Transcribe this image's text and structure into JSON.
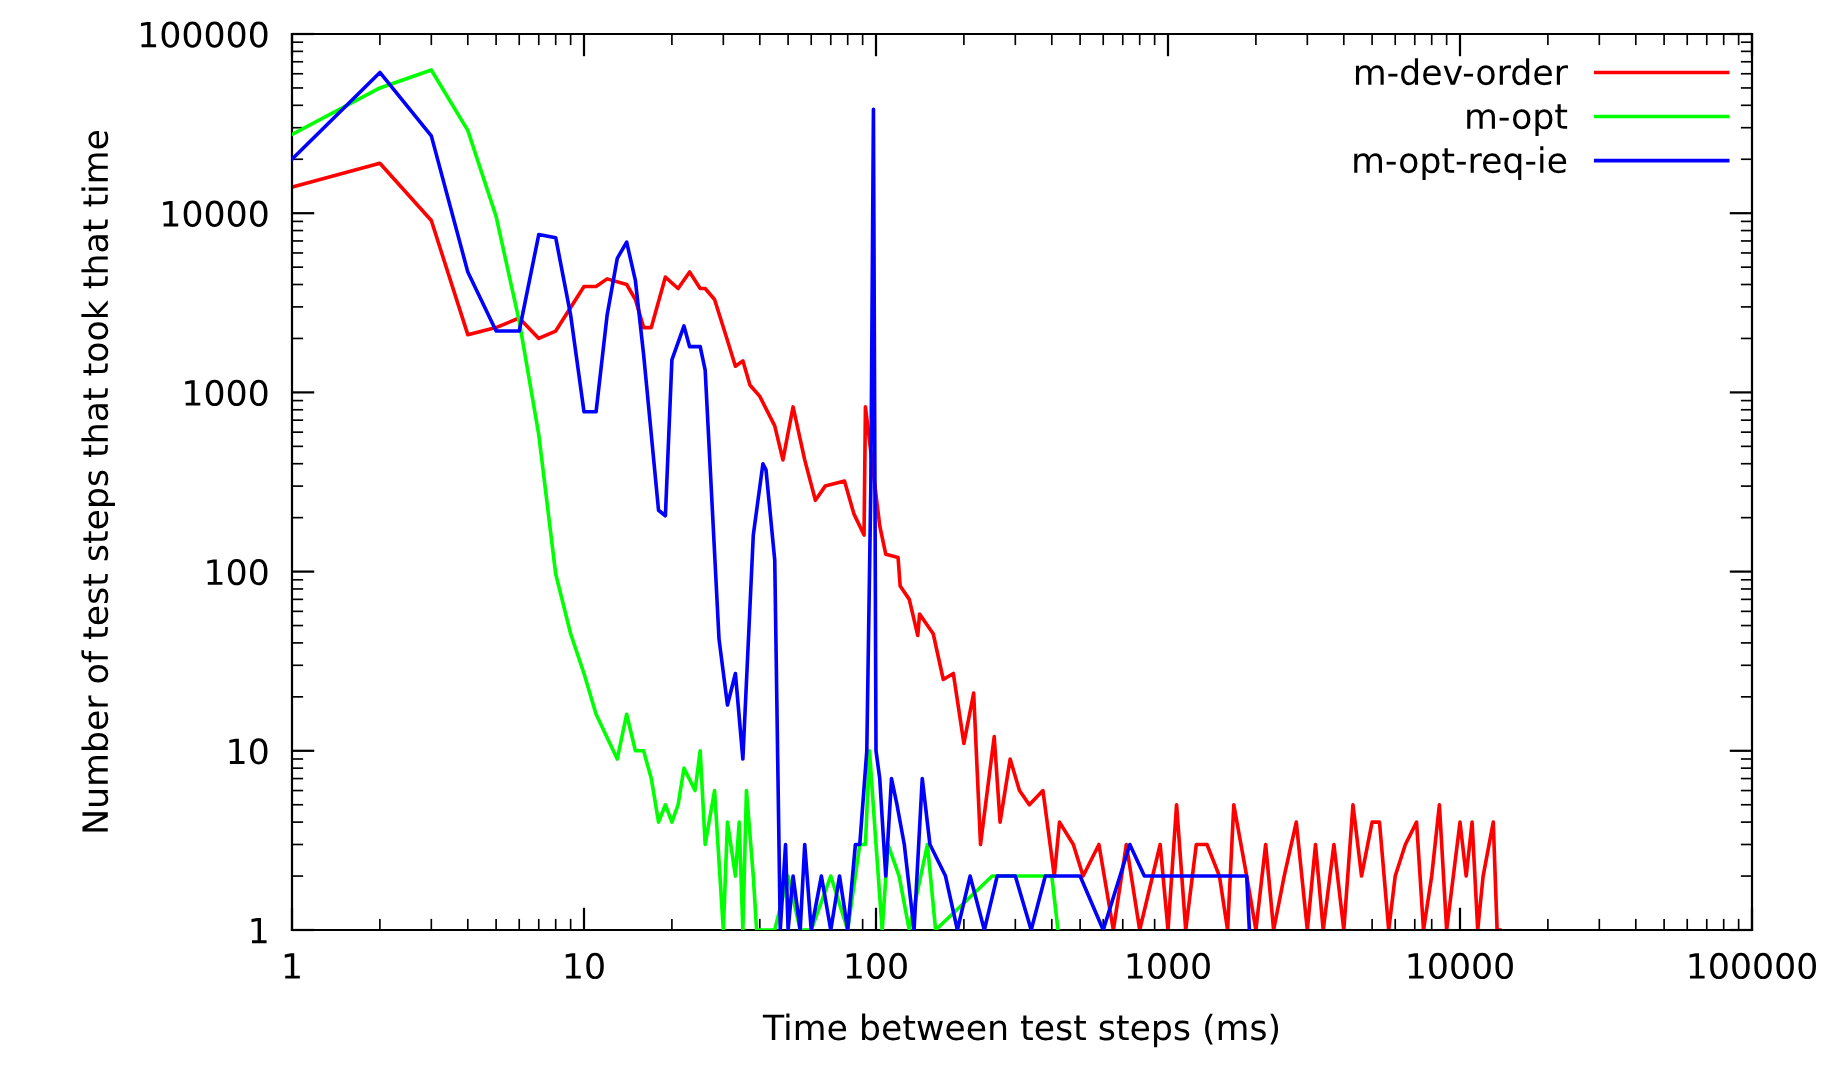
{
  "chart_data": {
    "type": "line",
    "xlabel": "Time between test steps (ms)",
    "ylabel": "Number of test steps that took that time",
    "log": "xy",
    "xlim": [
      1,
      100000
    ],
    "xticks": [
      1,
      10,
      100,
      1000,
      10000,
      100000
    ],
    "ylim": [
      1,
      100000
    ],
    "yticks": [
      1,
      10,
      100,
      1000,
      10000,
      100000
    ],
    "grid": false,
    "legend": "top right",
    "line_style": "solid",
    "series": [
      {
        "name": "m-dev-order",
        "color": "#ff0000",
        "x": [
          1,
          2,
          3,
          4,
          5,
          6,
          7,
          8,
          10,
          11,
          12,
          14,
          15,
          16,
          17,
          19,
          21,
          23,
          25,
          26,
          28,
          31,
          33,
          35,
          37,
          40,
          45,
          48,
          52,
          57,
          62,
          67,
          78,
          84,
          91,
          92,
          103,
          108,
          119,
          121,
          130,
          139,
          141,
          157,
          170,
          184,
          200,
          216,
          228,
          254,
          266,
          288,
          310,
          335,
          373,
          408,
          425,
          474,
          512,
          580,
          650,
          720,
          800,
          940,
          1000,
          1070,
          1150,
          1250,
          1360,
          1500,
          1600,
          1680,
          1860,
          2000,
          2160,
          2300,
          2500,
          2750,
          3000,
          3200,
          3400,
          3700,
          4000,
          4300,
          4600,
          5000,
          5300,
          5700,
          6000,
          6500,
          7100,
          7500,
          8000,
          8500,
          9000,
          10000,
          10500,
          11000,
          11500,
          12000,
          13000,
          13400,
          13700
        ],
        "values": [
          14000,
          19000,
          9100,
          2100,
          2300,
          2600,
          2000,
          2200,
          3900,
          3900,
          4300,
          4000,
          3300,
          2300,
          2300,
          4400,
          3800,
          4700,
          3800,
          3800,
          3300,
          1950,
          1400,
          1500,
          1100,
          950,
          650,
          420,
          830,
          420,
          250,
          300,
          320,
          210,
          160,
          830,
          180,
          125,
          120,
          83,
          70,
          44,
          58,
          45,
          25,
          27,
          11,
          21,
          3,
          12,
          4,
          9,
          6,
          5,
          6,
          2,
          4,
          3,
          2,
          3,
          1,
          3,
          1,
          3,
          1,
          5,
          1,
          3,
          3,
          2,
          1,
          5,
          2,
          1,
          3,
          1,
          2,
          4,
          1,
          3,
          1,
          3,
          1,
          5,
          2,
          4,
          4,
          1,
          2,
          3,
          4,
          1,
          2,
          5,
          1,
          4,
          2,
          4,
          1,
          2,
          4,
          1,
          1
        ]
      },
      {
        "name": "m-opt",
        "color": "#00ff00",
        "x": [
          1,
          2,
          3,
          4,
          5,
          6,
          7,
          8,
          9,
          10,
          11,
          13,
          14,
          15,
          16,
          17,
          18,
          19,
          20,
          21,
          22,
          24,
          25,
          26,
          28,
          30,
          31,
          33,
          34,
          35,
          36,
          38,
          39,
          45,
          50,
          55,
          60,
          70,
          80,
          88,
          92,
          95,
          100,
          105,
          110,
          120,
          130,
          150,
          160,
          250,
          400,
          420
        ],
        "values": [
          27500,
          50000,
          63000,
          29000,
          9600,
          2500,
          580,
          97,
          45,
          27,
          16,
          9,
          16,
          10,
          10,
          7,
          4,
          5,
          4,
          5,
          8,
          6,
          10,
          3,
          6,
          1,
          4,
          2,
          4,
          1,
          6,
          2,
          1,
          1,
          2,
          1,
          1,
          2,
          1,
          3,
          3,
          10,
          3,
          1,
          3,
          2,
          1,
          3,
          1,
          2,
          2,
          1
        ]
      },
      {
        "name": "m-opt-req-ie",
        "color": "#0000ff",
        "x": [
          1,
          2,
          3,
          4,
          5,
          6,
          7,
          8,
          9,
          10,
          11,
          12,
          13,
          14,
          15,
          16,
          18,
          19,
          20,
          22,
          23,
          25,
          26,
          29,
          31,
          33,
          35,
          38,
          41,
          42,
          45,
          47,
          49,
          50,
          52,
          55,
          57,
          60,
          65,
          70,
          75,
          80,
          85,
          88,
          93,
          96,
          98,
          100,
          103,
          108,
          113,
          118,
          125,
          135,
          144,
          153,
          173,
          190,
          210,
          235,
          260,
          300,
          340,
          380,
          425,
          500,
          600,
          740,
          830,
          1050,
          1300,
          1580,
          1860,
          1900
        ],
        "values": [
          20000,
          61000,
          27000,
          4700,
          2200,
          2200,
          7600,
          7300,
          2700,
          780,
          780,
          2700,
          5600,
          6900,
          4200,
          1630,
          220,
          205,
          1520,
          2350,
          1800,
          1800,
          1330,
          42,
          18,
          27,
          9,
          160,
          400,
          370,
          116,
          1,
          3,
          1,
          2,
          1,
          3,
          1,
          2,
          1,
          2,
          1,
          3,
          3,
          10,
          300,
          38000,
          10,
          7,
          2,
          7,
          5,
          3,
          1,
          7,
          3,
          2,
          1,
          2,
          1,
          2,
          2,
          1,
          2,
          2,
          2,
          1,
          3,
          2,
          2,
          2,
          2,
          2,
          1
        ]
      }
    ]
  }
}
